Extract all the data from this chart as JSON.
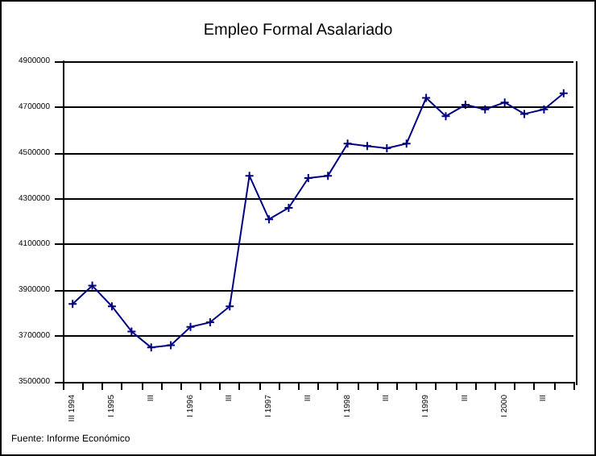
{
  "chart_data": {
    "type": "line",
    "title": "Empleo Formal Asalariado",
    "categories": [
      "III 1994",
      null,
      "I 1995",
      null,
      "III",
      null,
      "I 1996",
      null,
      "III",
      null,
      "I 1997",
      null,
      "III",
      null,
      "I 1998",
      null,
      "III",
      null,
      "I 1999",
      null,
      "III",
      null,
      "I 2000",
      null,
      "III",
      null
    ],
    "series": [
      {
        "color": "#000080",
        "values": [
          3840000,
          3920000,
          3830000,
          3720000,
          3650000,
          3660000,
          3740000,
          3760000,
          3830000,
          4400000,
          4210000,
          4260000,
          4390000,
          4400000,
          4540000,
          4530000,
          4520000,
          4540000,
          4740000,
          4660000,
          4710000,
          4690000,
          4720000,
          4670000,
          4690000,
          4760000
        ]
      }
    ],
    "ylim": [
      3500000,
      4900000
    ],
    "yticks": [
      3500000,
      3700000,
      3900000,
      4100000,
      4300000,
      4500000,
      4700000,
      4900000
    ],
    "grid": "y",
    "marker": "cross",
    "line_style": "solid",
    "annotations": [
      "Fuente: Informe Económico"
    ]
  }
}
